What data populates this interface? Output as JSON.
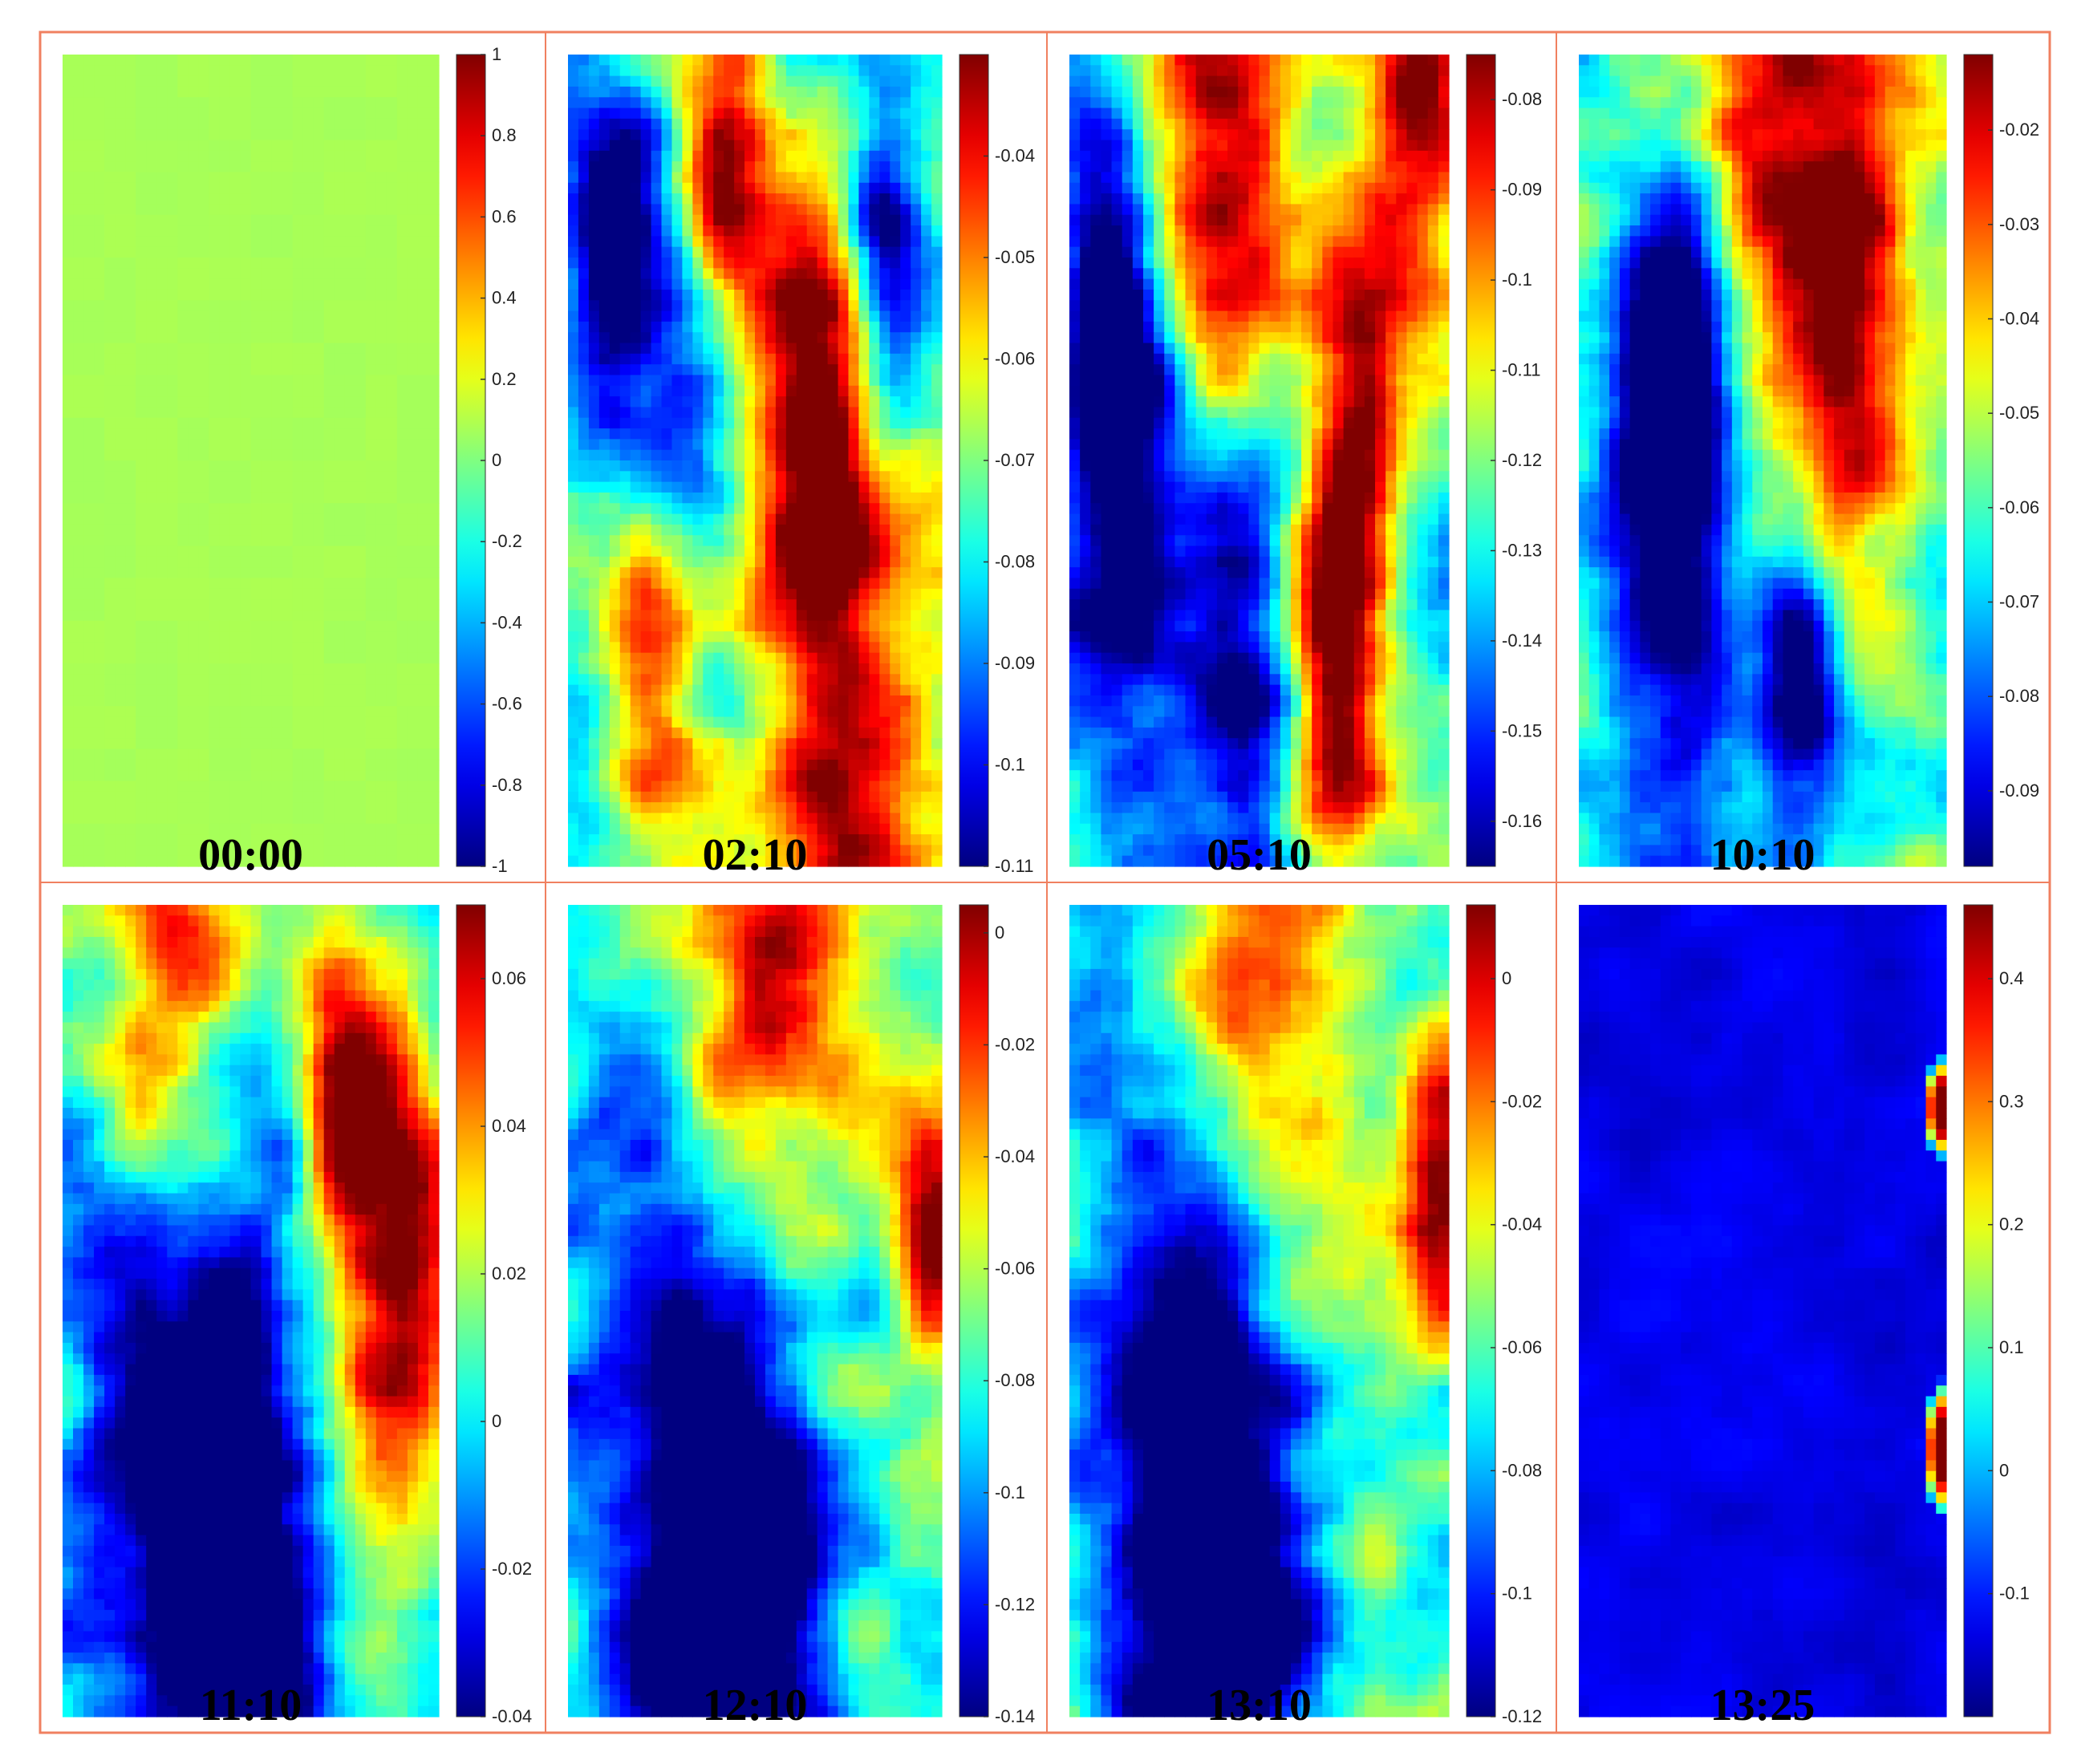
{
  "figure": {
    "panel_border_color": "#f08060",
    "colormap": "jet"
  },
  "chart_data": [
    {
      "type": "heatmap",
      "time_label": "00:00",
      "clim": [
        -1,
        1
      ],
      "colorbar_ticks": [
        "1",
        "0.8",
        "0.6",
        "0.4",
        "0.2",
        "0",
        "-0.2",
        "-0.4",
        "-0.6",
        "-0.8",
        "-1"
      ],
      "colorbar_tick_values": [
        1,
        0.8,
        0.6,
        0.4,
        0.2,
        0,
        -0.2,
        -0.4,
        -0.6,
        -0.8,
        -1
      ],
      "pattern": "uniform",
      "uniform_value": 0.08
    },
    {
      "type": "heatmap",
      "time_label": "02:10",
      "clim": [
        -0.11,
        -0.03
      ],
      "colorbar_ticks": [
        "-0.04",
        "-0.05",
        "-0.06",
        "-0.07",
        "-0.08",
        "-0.09",
        "-0.1",
        "-0.11"
      ],
      "colorbar_tick_values": [
        -0.04,
        -0.05,
        -0.06,
        -0.07,
        -0.08,
        -0.09,
        -0.1,
        -0.11
      ],
      "pattern": "blobs",
      "hot_spots": [
        [
          0.75,
          0.85,
          0.22
        ],
        [
          0.42,
          0.15,
          0.12
        ],
        [
          0.65,
          0.42,
          0.14
        ],
        [
          0.25,
          0.7,
          0.14
        ]
      ],
      "cold_spots": [
        [
          0.3,
          0.52,
          0.14
        ],
        [
          0.12,
          0.25,
          0.12
        ],
        [
          0.85,
          0.25,
          0.1
        ]
      ]
    },
    {
      "type": "heatmap",
      "time_label": "05:10",
      "clim": [
        -0.165,
        -0.075
      ],
      "colorbar_ticks": [
        "-0.08",
        "-0.09",
        "-0.1",
        "-0.11",
        "-0.12",
        "-0.13",
        "-0.14",
        "-0.15",
        "-0.16"
      ],
      "colorbar_tick_values": [
        -0.08,
        -0.09,
        -0.1,
        -0.11,
        -0.12,
        -0.13,
        -0.14,
        -0.15,
        -0.16
      ],
      "pattern": "blobs",
      "hot_spots": [
        [
          0.4,
          0.08,
          0.2
        ],
        [
          0.92,
          0.05,
          0.15
        ],
        [
          0.7,
          0.8,
          0.12
        ],
        [
          0.75,
          0.5,
          0.12
        ]
      ],
      "cold_spots": [
        [
          0.15,
          0.55,
          0.18
        ],
        [
          0.45,
          0.75,
          0.14
        ],
        [
          0.1,
          0.3,
          0.12
        ]
      ]
    },
    {
      "type": "heatmap",
      "time_label": "10:10",
      "clim": [
        -0.098,
        -0.012
      ],
      "colorbar_ticks": [
        "-0.02",
        "-0.03",
        "-0.04",
        "-0.05",
        "-0.06",
        "-0.07",
        "-0.08",
        "-0.09"
      ],
      "colorbar_tick_values": [
        -0.02,
        -0.03,
        -0.04,
        -0.05,
        -0.06,
        -0.07,
        -0.08,
        -0.09
      ],
      "pattern": "blobs",
      "hot_spots": [
        [
          0.5,
          0.02,
          0.25
        ],
        [
          0.75,
          0.35,
          0.16
        ]
      ],
      "cold_spots": [
        [
          0.25,
          0.6,
          0.2
        ],
        [
          0.3,
          0.35,
          0.15
        ],
        [
          0.6,
          0.8,
          0.12
        ]
      ]
    },
    {
      "type": "heatmap",
      "time_label": "11:10",
      "clim": [
        -0.04,
        0.07
      ],
      "colorbar_ticks": [
        "0.06",
        "0.04",
        "0.02",
        "0",
        "-0.02",
        "-0.04"
      ],
      "colorbar_tick_values": [
        0.06,
        0.04,
        0.02,
        0,
        -0.02,
        -0.04
      ],
      "pattern": "blobs",
      "hot_spots": [
        [
          0.3,
          0.02,
          0.2
        ],
        [
          0.9,
          0.45,
          0.14
        ],
        [
          0.75,
          0.25,
          0.12
        ]
      ],
      "cold_spots": [
        [
          0.3,
          0.65,
          0.28
        ],
        [
          0.5,
          0.9,
          0.2
        ]
      ]
    },
    {
      "type": "heatmap",
      "time_label": "12:10",
      "clim": [
        -0.14,
        0.005
      ],
      "colorbar_ticks": [
        "0",
        "-0.02",
        "-0.04",
        "-0.06",
        "-0.08",
        "-0.1",
        "-0.12",
        "-0.14"
      ],
      "colorbar_tick_values": [
        0,
        -0.02,
        -0.04,
        -0.06,
        -0.08,
        -0.1,
        -0.12,
        -0.14
      ],
      "pattern": "blobs",
      "hot_spots": [
        [
          0.5,
          0.02,
          0.25
        ],
        [
          0.98,
          0.4,
          0.1
        ]
      ],
      "cold_spots": [
        [
          0.3,
          0.65,
          0.28
        ],
        [
          0.5,
          0.9,
          0.2
        ]
      ]
    },
    {
      "type": "heatmap",
      "time_label": "13:10",
      "clim": [
        -0.12,
        0.012
      ],
      "colorbar_ticks": [
        "0",
        "-0.02",
        "-0.04",
        "-0.06",
        "-0.08",
        "-0.1",
        "-0.12"
      ],
      "colorbar_tick_values": [
        0,
        -0.02,
        -0.04,
        -0.06,
        -0.08,
        -0.1,
        -0.12
      ],
      "pattern": "blobs",
      "hot_spots": [
        [
          0.5,
          0.02,
          0.25
        ],
        [
          0.98,
          0.35,
          0.1
        ]
      ],
      "cold_spots": [
        [
          0.3,
          0.6,
          0.28
        ],
        [
          0.45,
          0.9,
          0.2
        ]
      ]
    },
    {
      "type": "heatmap",
      "time_label": "13:25",
      "clim": [
        -0.2,
        0.46
      ],
      "colorbar_ticks": [
        "0.4",
        "0.3",
        "0.2",
        "0.1",
        "0",
        "-0.1"
      ],
      "colorbar_tick_values": [
        0.4,
        0.3,
        0.2,
        0.1,
        0,
        -0.1
      ],
      "pattern": "edge",
      "background_value": -0.13,
      "edge_hot_spots": [
        [
          0.25,
          0.06
        ],
        [
          0.67,
          0.08
        ]
      ]
    }
  ]
}
